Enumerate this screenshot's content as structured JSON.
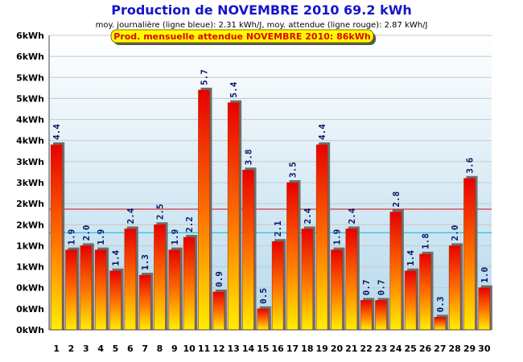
{
  "chart_data": {
    "type": "bar",
    "title": "Production de NOVEMBRE 2010  69.2 kWh",
    "subtitle": "moy. journalière (ligne bleue): 2.31 kWh/J,  moy. attendue (ligne rouge): 2.87 kWh/J",
    "banner": "Prod. mensuelle attendue NOVEMBRE 2010: 86kWh",
    "categories": [
      "1",
      "2",
      "3",
      "4",
      "5",
      "6",
      "7",
      "8",
      "9",
      "10",
      "11",
      "12",
      "13",
      "14",
      "15",
      "16",
      "17",
      "18",
      "19",
      "20",
      "21",
      "22",
      "23",
      "24",
      "25",
      "26",
      "27",
      "28",
      "29",
      "30"
    ],
    "values": [
      4.4,
      1.9,
      2.0,
      1.9,
      1.4,
      2.4,
      1.3,
      2.5,
      1.9,
      2.2,
      5.7,
      0.9,
      5.4,
      3.8,
      0.5,
      2.1,
      3.5,
      2.4,
      4.4,
      1.9,
      2.4,
      0.7,
      0.7,
      2.8,
      1.4,
      1.8,
      0.3,
      2.0,
      3.6,
      1.0
    ],
    "value_labels": [
      "4.4",
      "1.9",
      "2.0",
      "1.9",
      "1.4",
      "2.4",
      "1.3",
      "2.5",
      "1.9",
      "2.2",
      "5.7",
      "0.9",
      "5.4",
      "3.8",
      "0.5",
      "2.1",
      "3.5",
      "2.4",
      "4.4",
      "1.9",
      "2.4",
      "0.7",
      "0.7",
      "2.8",
      "1.4",
      "1.8",
      "0.3",
      "2.0",
      "3.6",
      "1.0"
    ],
    "y_tick_labels": [
      "0kWh",
      "0kWh",
      "0kWh",
      "1kWh",
      "1kWh",
      "2kWh",
      "2kWh",
      "3kWh",
      "3kWh",
      "4kWh",
      "4kWh",
      "5kWh",
      "5kWh",
      "6kWh",
      "6kWh"
    ],
    "ylim": [
      0,
      7
    ],
    "reference_lines": [
      {
        "name": "moy. journalière",
        "value": 2.31,
        "color": "#00b8d8"
      },
      {
        "name": "moy. attendue",
        "value": 2.87,
        "color": "#d01010"
      }
    ],
    "grid": true,
    "colors": {
      "bar_top": "#e80000",
      "bar_bottom": "#ffee00",
      "bar_edge": "#6a6a6a",
      "plot_bg_top": "#ffffff",
      "plot_bg_bottom": "#b4d8ec",
      "title": "#1515c8",
      "banner_bg": "#ffff00",
      "banner_text": "#e00000"
    }
  }
}
